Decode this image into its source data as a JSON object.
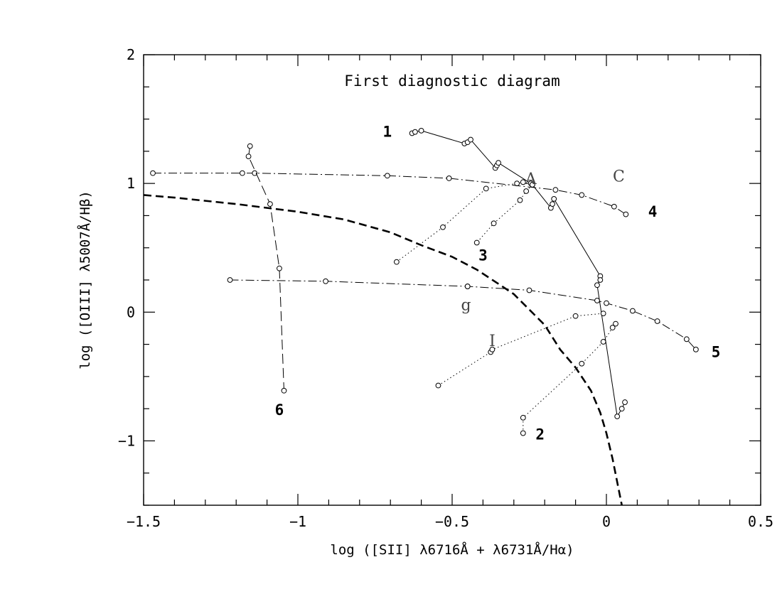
{
  "chart_data": {
    "type": "scatter",
    "title": "First diagnostic diagram",
    "xlabel": "log ([SII] λ6716Å + λ6731Å/Hα)",
    "ylabel": "log ([OIII] λ5007Å/Hβ)",
    "xlim": [
      -1.5,
      0.5
    ],
    "ylim": [
      -1.5,
      2
    ],
    "x_ticks": [
      -1.5,
      -1,
      -0.5,
      0,
      0.5
    ],
    "x_tick_labels": [
      "−1.5",
      "−1",
      "−0.5",
      "0",
      "0.5"
    ],
    "y_ticks": [
      -1,
      0,
      1,
      2
    ],
    "y_tick_labels": [
      "−1",
      "0",
      "1",
      "2"
    ],
    "grid": false,
    "series": [
      {
        "name": "1",
        "style": "solid",
        "points": [
          [
            -0.63,
            1.39
          ],
          [
            -0.62,
            1.4
          ],
          [
            -0.6,
            1.41
          ],
          [
            -0.46,
            1.31
          ],
          [
            -0.45,
            1.32
          ],
          [
            -0.44,
            1.34
          ],
          [
            -0.36,
            1.12
          ],
          [
            -0.355,
            1.14
          ],
          [
            -0.35,
            1.16
          ],
          [
            -0.245,
            1.0
          ],
          [
            -0.24,
            0.99
          ],
          [
            -0.18,
            0.81
          ],
          [
            -0.175,
            0.84
          ],
          [
            -0.17,
            0.88
          ],
          [
            -0.02,
            0.28
          ],
          [
            -0.02,
            0.25
          ],
          [
            -0.03,
            0.21
          ],
          [
            0.035,
            -0.81
          ],
          [
            0.05,
            -0.75
          ],
          [
            0.06,
            -0.7
          ]
        ]
      },
      {
        "name": "2",
        "style": "dotted",
        "points": [
          [
            -0.27,
            -0.94
          ],
          [
            -0.27,
            -0.82
          ],
          [
            -0.08,
            -0.4
          ],
          [
            -0.01,
            -0.23
          ],
          [
            0.02,
            -0.12
          ],
          [
            0.03,
            -0.09
          ]
        ]
      },
      {
        "name": "3",
        "style": "dotted",
        "points": [
          [
            -0.68,
            0.39
          ],
          [
            -0.53,
            0.66
          ],
          [
            -0.39,
            0.96
          ],
          [
            -0.29,
            1.0
          ],
          [
            -0.27,
            1.01
          ],
          [
            -0.24,
            0.99
          ],
          [
            -0.26,
            0.94
          ],
          [
            -0.28,
            0.87
          ],
          [
            -0.365,
            0.69
          ],
          [
            -0.42,
            0.54
          ]
        ]
      },
      {
        "name": "4",
        "style": "dashdot",
        "points": [
          [
            -1.47,
            1.08
          ],
          [
            -1.18,
            1.08
          ],
          [
            -1.14,
            1.08
          ],
          [
            -0.71,
            1.06
          ],
          [
            -0.51,
            1.04
          ],
          [
            -0.165,
            0.95
          ],
          [
            -0.08,
            0.91
          ],
          [
            0.025,
            0.82
          ],
          [
            0.063,
            0.76
          ]
        ]
      },
      {
        "name": "5",
        "style": "dashdot",
        "points": [
          [
            -1.22,
            0.25
          ],
          [
            -0.91,
            0.24
          ],
          [
            -0.45,
            0.2
          ],
          [
            -0.25,
            0.17
          ],
          [
            -0.03,
            0.09
          ],
          [
            0.0,
            0.07
          ],
          [
            0.085,
            0.01
          ],
          [
            0.165,
            -0.07
          ],
          [
            0.26,
            -0.21
          ],
          [
            0.29,
            -0.29
          ]
        ]
      },
      {
        "name": "6",
        "style": "longdash",
        "points": [
          [
            -1.155,
            1.29
          ],
          [
            -1.16,
            1.21
          ],
          [
            -1.09,
            0.84
          ],
          [
            -1.06,
            0.34
          ],
          [
            -1.045,
            -0.61
          ]
        ]
      },
      {
        "name": "I",
        "style": "dotted",
        "points": [
          [
            -0.545,
            -0.57
          ],
          [
            -0.375,
            -0.31
          ],
          [
            -0.37,
            -0.29
          ],
          [
            -0.1,
            -0.03
          ],
          [
            -0.01,
            -0.01
          ]
        ]
      }
    ],
    "extra_points": [
      [
        -0.45,
        0.2
      ]
    ],
    "divider_curve": {
      "style": "bold-dashed",
      "points": [
        [
          -1.5,
          0.91
        ],
        [
          -1.4,
          0.89
        ],
        [
          -1.2,
          0.84
        ],
        [
          -1.0,
          0.78
        ],
        [
          -0.85,
          0.72
        ],
        [
          -0.7,
          0.62
        ],
        [
          -0.6,
          0.52
        ],
        [
          -0.5,
          0.43
        ],
        [
          -0.42,
          0.33
        ],
        [
          -0.35,
          0.22
        ],
        [
          -0.3,
          0.14
        ],
        [
          -0.25,
          0.02
        ],
        [
          -0.2,
          -0.1
        ],
        [
          -0.15,
          -0.29
        ],
        [
          -0.1,
          -0.43
        ],
        [
          -0.05,
          -0.61
        ],
        [
          -0.02,
          -0.78
        ],
        [
          0.0,
          -0.94
        ],
        [
          0.02,
          -1.14
        ],
        [
          0.035,
          -1.32
        ],
        [
          0.05,
          -1.5
        ]
      ]
    },
    "annotations": [
      {
        "text": "1",
        "x": -0.71,
        "y": 1.4,
        "font": "mono"
      },
      {
        "text": "2",
        "x": -0.215,
        "y": -0.95,
        "font": "mono"
      },
      {
        "text": "3",
        "x": -0.4,
        "y": 0.44,
        "font": "mono"
      },
      {
        "text": "4",
        "x": 0.15,
        "y": 0.78,
        "font": "mono"
      },
      {
        "text": "5",
        "x": 0.355,
        "y": -0.31,
        "font": "mono"
      },
      {
        "text": "6",
        "x": -1.06,
        "y": -0.76,
        "font": "mono"
      },
      {
        "text": "A",
        "x": -0.245,
        "y": 1.04,
        "font": "serif"
      },
      {
        "text": "C",
        "x": 0.04,
        "y": 1.06,
        "font": "serif"
      },
      {
        "text": "g",
        "x": -0.455,
        "y": 0.06,
        "font": "serif"
      },
      {
        "text": "I",
        "x": -0.37,
        "y": -0.22,
        "font": "serif"
      }
    ]
  }
}
